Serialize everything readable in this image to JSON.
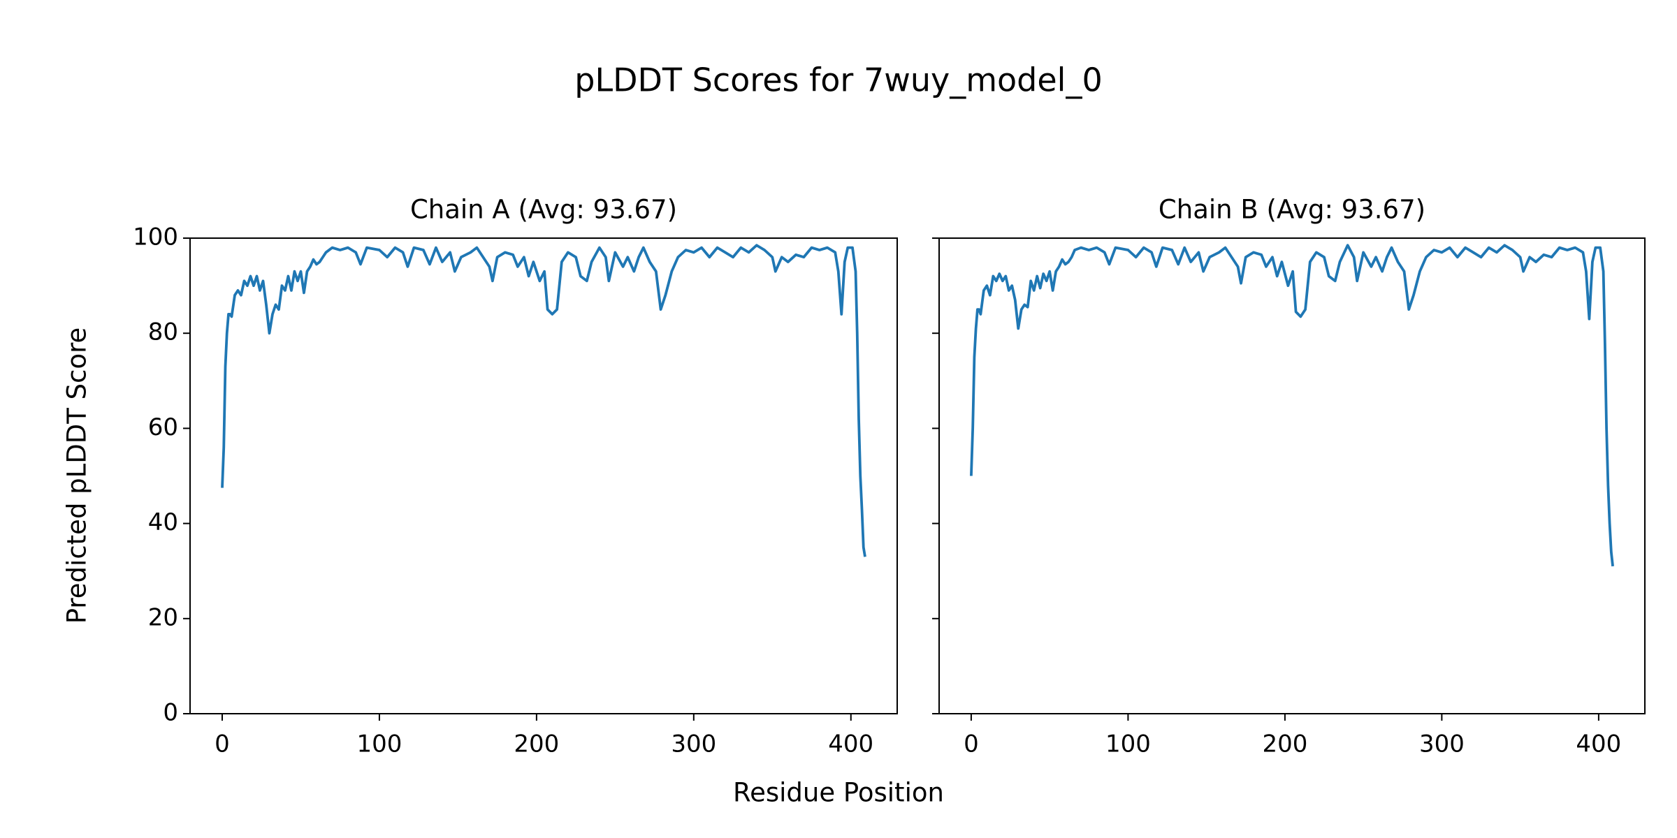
{
  "title": "pLDDT Scores for 7wuy_model_0",
  "xlabel": "Residue Position",
  "ylabel": "Predicted pLDDT Score",
  "chart_data": [
    {
      "type": "line",
      "title": "Chain A (Avg: 93.67)",
      "color": "#1f77b4",
      "xlim": [
        -20.45,
        429.45
      ],
      "ylim": [
        0,
        100
      ],
      "xticks": [
        0,
        100,
        200,
        300,
        400
      ],
      "yticks": [
        0,
        20,
        40,
        60,
        80,
        100
      ],
      "show_ytick_labels": true,
      "x": [
        0,
        1,
        2,
        3,
        4,
        5,
        6,
        8,
        10,
        12,
        14,
        16,
        18,
        20,
        22,
        24,
        26,
        28,
        30,
        32,
        34,
        36,
        38,
        40,
        42,
        44,
        46,
        48,
        50,
        52,
        54,
        56,
        58,
        60,
        62,
        64,
        66,
        70,
        75,
        80,
        85,
        88,
        92,
        100,
        105,
        110,
        115,
        118,
        122,
        128,
        132,
        136,
        140,
        145,
        148,
        152,
        158,
        162,
        166,
        170,
        172,
        175,
        180,
        185,
        188,
        192,
        195,
        198,
        202,
        205,
        207,
        210,
        213,
        216,
        220,
        225,
        228,
        232,
        235,
        240,
        244,
        246,
        250,
        255,
        258,
        262,
        265,
        268,
        272,
        276,
        279,
        282,
        286,
        290,
        295,
        300,
        305,
        310,
        315,
        320,
        325,
        330,
        335,
        340,
        345,
        350,
        352,
        356,
        360,
        365,
        370,
        375,
        380,
        385,
        390,
        392,
        394,
        396,
        398,
        401,
        403,
        404,
        405,
        406,
        407,
        408,
        409
      ],
      "values": [
        47.5,
        56,
        73,
        80,
        84,
        84,
        83.5,
        88,
        89,
        88,
        91,
        90,
        92,
        90,
        92,
        89,
        91,
        86,
        80,
        84,
        86,
        85,
        90,
        89,
        92,
        89,
        93,
        91,
        93,
        88.5,
        93,
        94,
        95.5,
        94.5,
        95,
        96,
        97,
        98,
        97.5,
        98,
        97,
        94.5,
        98,
        97.5,
        96,
        98,
        97,
        94,
        98,
        97.5,
        94.5,
        98,
        95,
        97,
        93,
        96,
        97,
        98,
        96,
        94,
        91,
        96,
        97,
        96.5,
        94,
        96,
        92,
        95,
        91,
        93,
        85,
        84,
        85,
        95,
        97,
        96,
        92,
        91,
        95,
        98,
        96,
        91,
        97,
        94,
        96,
        93,
        96,
        98,
        95,
        93,
        85,
        88,
        93,
        96,
        97.5,
        97,
        98,
        96,
        98,
        97,
        96,
        98,
        97,
        98.5,
        97.5,
        96,
        93,
        96,
        95,
        96.5,
        96,
        98,
        97.5,
        98,
        97,
        93,
        84,
        95,
        98,
        98,
        93,
        80,
        62,
        50,
        43,
        35,
        33
      ]
    },
    {
      "type": "line",
      "title": "Chain B (Avg: 93.67)",
      "color": "#1f77b4",
      "xlim": [
        -20.45,
        429.45
      ],
      "ylim": [
        0,
        100
      ],
      "xticks": [
        0,
        100,
        200,
        300,
        400
      ],
      "yticks": [
        0,
        20,
        40,
        60,
        80,
        100
      ],
      "show_ytick_labels": false,
      "x": [
        0,
        1,
        2,
        3,
        4,
        5,
        6,
        8,
        10,
        12,
        14,
        16,
        18,
        20,
        22,
        24,
        26,
        28,
        30,
        32,
        34,
        36,
        38,
        40,
        42,
        44,
        46,
        48,
        50,
        52,
        54,
        56,
        58,
        60,
        62,
        64,
        66,
        70,
        75,
        80,
        85,
        88,
        92,
        100,
        105,
        110,
        115,
        118,
        122,
        128,
        132,
        136,
        140,
        145,
        148,
        152,
        158,
        162,
        166,
        170,
        172,
        175,
        180,
        185,
        188,
        192,
        195,
        198,
        202,
        205,
        207,
        210,
        213,
        216,
        220,
        225,
        228,
        232,
        235,
        240,
        244,
        246,
        250,
        255,
        258,
        262,
        265,
        268,
        272,
        276,
        279,
        282,
        286,
        290,
        295,
        300,
        305,
        310,
        315,
        320,
        325,
        330,
        335,
        340,
        345,
        350,
        352,
        356,
        360,
        365,
        370,
        375,
        380,
        385,
        390,
        392,
        394,
        396,
        398,
        401,
        403,
        404,
        405,
        406,
        407,
        408,
        409
      ],
      "values": [
        50,
        60,
        75,
        81,
        85,
        85,
        84,
        89,
        90,
        88,
        92,
        91,
        92.5,
        91,
        92,
        89,
        90,
        87,
        81,
        85,
        86,
        85.5,
        91,
        89,
        92,
        89.5,
        92.5,
        91,
        93,
        89,
        93,
        94,
        95.5,
        94.5,
        95,
        96,
        97.5,
        98,
        97.5,
        98,
        97,
        94.5,
        98,
        97.5,
        96,
        98,
        97,
        94,
        98,
        97.5,
        94.5,
        98,
        95,
        97,
        93,
        96,
        97,
        98,
        96,
        94,
        90.5,
        96,
        97,
        96.5,
        94,
        96,
        92,
        95,
        90,
        93,
        84.5,
        83.5,
        85,
        95,
        97,
        96,
        92,
        91,
        95,
        98.5,
        96,
        91,
        97,
        94,
        96,
        93,
        96,
        98,
        95,
        93,
        85,
        88,
        93,
        96,
        97.5,
        97,
        98,
        96,
        98,
        97,
        96,
        98,
        97,
        98.5,
        97.5,
        96,
        93,
        96,
        95,
        96.5,
        96,
        98,
        97.5,
        98,
        97,
        93,
        83,
        95,
        98,
        98,
        93,
        78,
        60,
        48,
        40,
        34,
        31
      ]
    }
  ]
}
